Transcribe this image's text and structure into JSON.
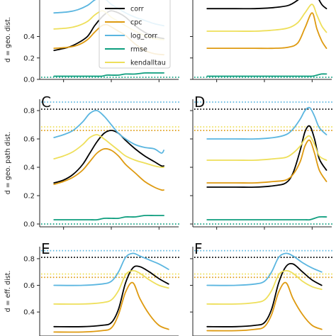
{
  "colors": {
    "corr": "#000000",
    "cpc": "#DE9A10",
    "log_corr": "#5BB6E0",
    "rmse": "#0E9E7E",
    "kendalltau": "#EEDF5A"
  },
  "legend": {
    "placement": "top-right of panel A",
    "entries": [
      "corr",
      "cpc",
      "log_corr",
      "rmse",
      "kendalltau"
    ]
  },
  "chart_data": [
    {
      "type": "line",
      "panel": "A",
      "ylabel": "d = geo. dist.",
      "yticks": [
        "0.0",
        "0.2",
        "0.4"
      ],
      "ylim": [
        0,
        0.82
      ],
      "xlim": [
        -1.5,
        1.5
      ],
      "x": [
        -1.2,
        -0.9,
        -0.7,
        -0.5,
        -0.35,
        -0.2,
        -0.1,
        0.0,
        0.15,
        0.3,
        0.5,
        0.7,
        0.9,
        1.1
      ],
      "series": [
        {
          "name": "corr",
          "values": [
            0.27,
            0.3,
            0.34,
            0.4,
            0.5,
            0.58,
            0.62,
            0.64,
            0.62,
            0.58,
            0.5,
            0.44,
            0.4,
            0.38
          ]
        },
        {
          "name": "cpc",
          "values": [
            0.29,
            0.3,
            0.32,
            0.37,
            0.44,
            0.5,
            0.51,
            0.49,
            0.45,
            0.41,
            0.33,
            0.27,
            0.24,
            0.23
          ]
        },
        {
          "name": "log_corr",
          "values": [
            0.62,
            0.63,
            0.65,
            0.69,
            0.74,
            0.77,
            0.74,
            0.7,
            0.66,
            0.62,
            0.58,
            0.55,
            0.52,
            0.5
          ]
        },
        {
          "name": "rmse",
          "values": [
            0.03,
            0.03,
            0.03,
            0.03,
            0.03,
            0.03,
            0.04,
            0.04,
            0.04,
            0.05,
            0.05,
            0.06,
            0.06,
            0.06
          ]
        },
        {
          "name": "kendalltau",
          "values": [
            0.47,
            0.48,
            0.5,
            0.54,
            0.6,
            0.64,
            0.62,
            0.58,
            0.54,
            0.5,
            0.45,
            0.41,
            0.38,
            0.37
          ]
        }
      ],
      "references": [
        {
          "name": "rmse",
          "value": 0.02
        }
      ]
    },
    {
      "type": "line",
      "panel": "B",
      "ylim": [
        0,
        0.82
      ],
      "xlim": [
        -1.5,
        1.5
      ],
      "x": [
        -1.2,
        -0.6,
        -0.2,
        0.2,
        0.5,
        0.7,
        0.85,
        1.0,
        1.1,
        1.2,
        1.3
      ],
      "series": [
        {
          "name": "kendalltau",
          "values": [
            0.45,
            0.45,
            0.45,
            0.46,
            0.48,
            0.53,
            0.62,
            0.7,
            0.6,
            0.5,
            0.44
          ]
        },
        {
          "name": "cpc",
          "values": [
            0.29,
            0.29,
            0.29,
            0.29,
            0.3,
            0.34,
            0.48,
            0.62,
            0.47,
            0.36,
            0.29
          ]
        },
        {
          "name": "corr",
          "values": [
            0.66,
            0.66,
            0.66,
            0.67,
            0.69,
            0.74,
            0.8,
            0.86,
            0.78,
            0.7,
            0.66
          ]
        },
        {
          "name": "rmse",
          "values": [
            0.03,
            0.03,
            0.03,
            0.03,
            0.03,
            0.03,
            0.03,
            0.03,
            0.04,
            0.05,
            0.05
          ]
        }
      ],
      "references": [
        {
          "name": "rmse",
          "value": 0.02
        }
      ]
    },
    {
      "type": "line",
      "panel": "C",
      "ylabel": "d = geo. path dist.",
      "yticks": [
        "0.0",
        "0.2",
        "0.4",
        "0.6",
        "0.8"
      ],
      "ylim": [
        -0.02,
        0.88
      ],
      "xlim": [
        -1.5,
        1.5
      ],
      "x": [
        -1.2,
        -1.0,
        -0.8,
        -0.6,
        -0.45,
        -0.3,
        -0.15,
        0.0,
        0.15,
        0.3,
        0.5,
        0.7,
        0.9,
        1.05,
        1.1
      ],
      "series": [
        {
          "name": "corr",
          "values": [
            0.29,
            0.31,
            0.35,
            0.42,
            0.5,
            0.58,
            0.64,
            0.66,
            0.64,
            0.59,
            0.53,
            0.48,
            0.44,
            0.41,
            0.41
          ]
        },
        {
          "name": "cpc",
          "values": [
            0.28,
            0.3,
            0.33,
            0.38,
            0.44,
            0.5,
            0.53,
            0.52,
            0.48,
            0.42,
            0.36,
            0.3,
            0.26,
            0.24,
            0.24
          ]
        },
        {
          "name": "log_corr",
          "values": [
            0.61,
            0.63,
            0.66,
            0.72,
            0.78,
            0.8,
            0.76,
            0.7,
            0.64,
            0.6,
            0.56,
            0.54,
            0.53,
            0.5,
            0.52
          ]
        },
        {
          "name": "kendalltau",
          "values": [
            0.46,
            0.48,
            0.51,
            0.56,
            0.61,
            0.63,
            0.6,
            0.56,
            0.52,
            0.48,
            0.45,
            0.43,
            0.41,
            0.4,
            0.4
          ]
        },
        {
          "name": "rmse",
          "values": [
            0.03,
            0.03,
            0.03,
            0.03,
            0.03,
            0.03,
            0.04,
            0.04,
            0.04,
            0.05,
            0.05,
            0.06,
            0.06,
            0.06,
            0.06
          ]
        }
      ],
      "references": [
        {
          "name": "log_corr",
          "value": 0.86
        },
        {
          "name": "corr",
          "value": 0.81
        },
        {
          "name": "kendalltau",
          "value": 0.685
        },
        {
          "name": "cpc",
          "value": 0.66
        },
        {
          "name": "rmse",
          "value": 0.0
        }
      ]
    },
    {
      "type": "line",
      "panel": "D",
      "ylim": [
        -0.02,
        0.88
      ],
      "xlim": [
        -1.5,
        1.5
      ],
      "x": [
        -1.2,
        -0.6,
        -0.2,
        0.2,
        0.45,
        0.6,
        0.75,
        0.85,
        0.95,
        1.05,
        1.15,
        1.3
      ],
      "series": [
        {
          "name": "corr",
          "values": [
            0.26,
            0.26,
            0.26,
            0.27,
            0.29,
            0.36,
            0.52,
            0.65,
            0.69,
            0.6,
            0.46,
            0.38
          ]
        },
        {
          "name": "cpc",
          "values": [
            0.29,
            0.29,
            0.29,
            0.3,
            0.31,
            0.35,
            0.44,
            0.55,
            0.59,
            0.5,
            0.38,
            0.3
          ]
        },
        {
          "name": "log_corr",
          "values": [
            0.6,
            0.6,
            0.6,
            0.61,
            0.63,
            0.67,
            0.74,
            0.8,
            0.82,
            0.76,
            0.68,
            0.63
          ]
        },
        {
          "name": "kendalltau",
          "values": [
            0.45,
            0.45,
            0.45,
            0.46,
            0.47,
            0.5,
            0.55,
            0.6,
            0.62,
            0.56,
            0.48,
            0.45
          ]
        },
        {
          "name": "rmse",
          "values": [
            0.03,
            0.03,
            0.03,
            0.03,
            0.03,
            0.03,
            0.03,
            0.03,
            0.03,
            0.04,
            0.05,
            0.05
          ]
        }
      ],
      "references": [
        {
          "name": "log_corr",
          "value": 0.86
        },
        {
          "name": "corr",
          "value": 0.81
        },
        {
          "name": "kendalltau",
          "value": 0.685
        },
        {
          "name": "cpc",
          "value": 0.66
        },
        {
          "name": "rmse",
          "value": 0.0
        }
      ]
    },
    {
      "type": "line",
      "panel": "E",
      "ylabel": "d = eff. dist.",
      "yticks": [
        "0.4",
        "0.6",
        "0.8"
      ],
      "ylim": [
        0.22,
        0.89
      ],
      "xlim": [
        -1.5,
        1.5
      ],
      "x": [
        -1.2,
        -0.6,
        -0.2,
        0.0,
        0.15,
        0.3,
        0.45,
        0.6,
        0.8,
        1.0,
        1.2
      ],
      "series": [
        {
          "name": "log_corr",
          "values": [
            0.6,
            0.6,
            0.61,
            0.63,
            0.7,
            0.81,
            0.84,
            0.82,
            0.79,
            0.76,
            0.72
          ]
        },
        {
          "name": "corr",
          "values": [
            0.29,
            0.29,
            0.3,
            0.32,
            0.42,
            0.62,
            0.73,
            0.74,
            0.7,
            0.65,
            0.61
          ]
        },
        {
          "name": "kendalltau",
          "values": [
            0.46,
            0.46,
            0.47,
            0.49,
            0.56,
            0.68,
            0.71,
            0.69,
            0.64,
            0.6,
            0.58
          ]
        },
        {
          "name": "cpc",
          "values": [
            0.25,
            0.25,
            0.26,
            0.28,
            0.38,
            0.55,
            0.62,
            0.5,
            0.38,
            0.3,
            0.27
          ]
        }
      ],
      "references": [
        {
          "name": "log_corr",
          "value": 0.86
        },
        {
          "name": "corr",
          "value": 0.81
        },
        {
          "name": "kendalltau",
          "value": 0.685
        },
        {
          "name": "cpc",
          "value": 0.66
        }
      ]
    },
    {
      "type": "line",
      "panel": "F",
      "ylim": [
        0.22,
        0.89
      ],
      "xlim": [
        -1.5,
        1.5
      ],
      "x": [
        -1.2,
        -0.6,
        -0.2,
        0.0,
        0.15,
        0.3,
        0.45,
        0.6,
        0.8,
        1.0,
        1.2
      ],
      "series": [
        {
          "name": "log_corr",
          "values": [
            0.6,
            0.6,
            0.61,
            0.63,
            0.7,
            0.81,
            0.84,
            0.82,
            0.77,
            0.73,
            0.7
          ]
        },
        {
          "name": "corr",
          "values": [
            0.29,
            0.29,
            0.3,
            0.32,
            0.42,
            0.62,
            0.74,
            0.76,
            0.7,
            0.64,
            0.6
          ]
        },
        {
          "name": "kendalltau",
          "values": [
            0.46,
            0.46,
            0.47,
            0.49,
            0.56,
            0.68,
            0.71,
            0.69,
            0.63,
            0.59,
            0.57
          ]
        },
        {
          "name": "cpc",
          "values": [
            0.26,
            0.26,
            0.27,
            0.29,
            0.38,
            0.55,
            0.62,
            0.5,
            0.38,
            0.3,
            0.27
          ]
        }
      ],
      "references": [
        {
          "name": "log_corr",
          "value": 0.86
        },
        {
          "name": "corr",
          "value": 0.81
        },
        {
          "name": "kendalltau",
          "value": 0.685
        },
        {
          "name": "cpc",
          "value": 0.66
        }
      ]
    }
  ]
}
